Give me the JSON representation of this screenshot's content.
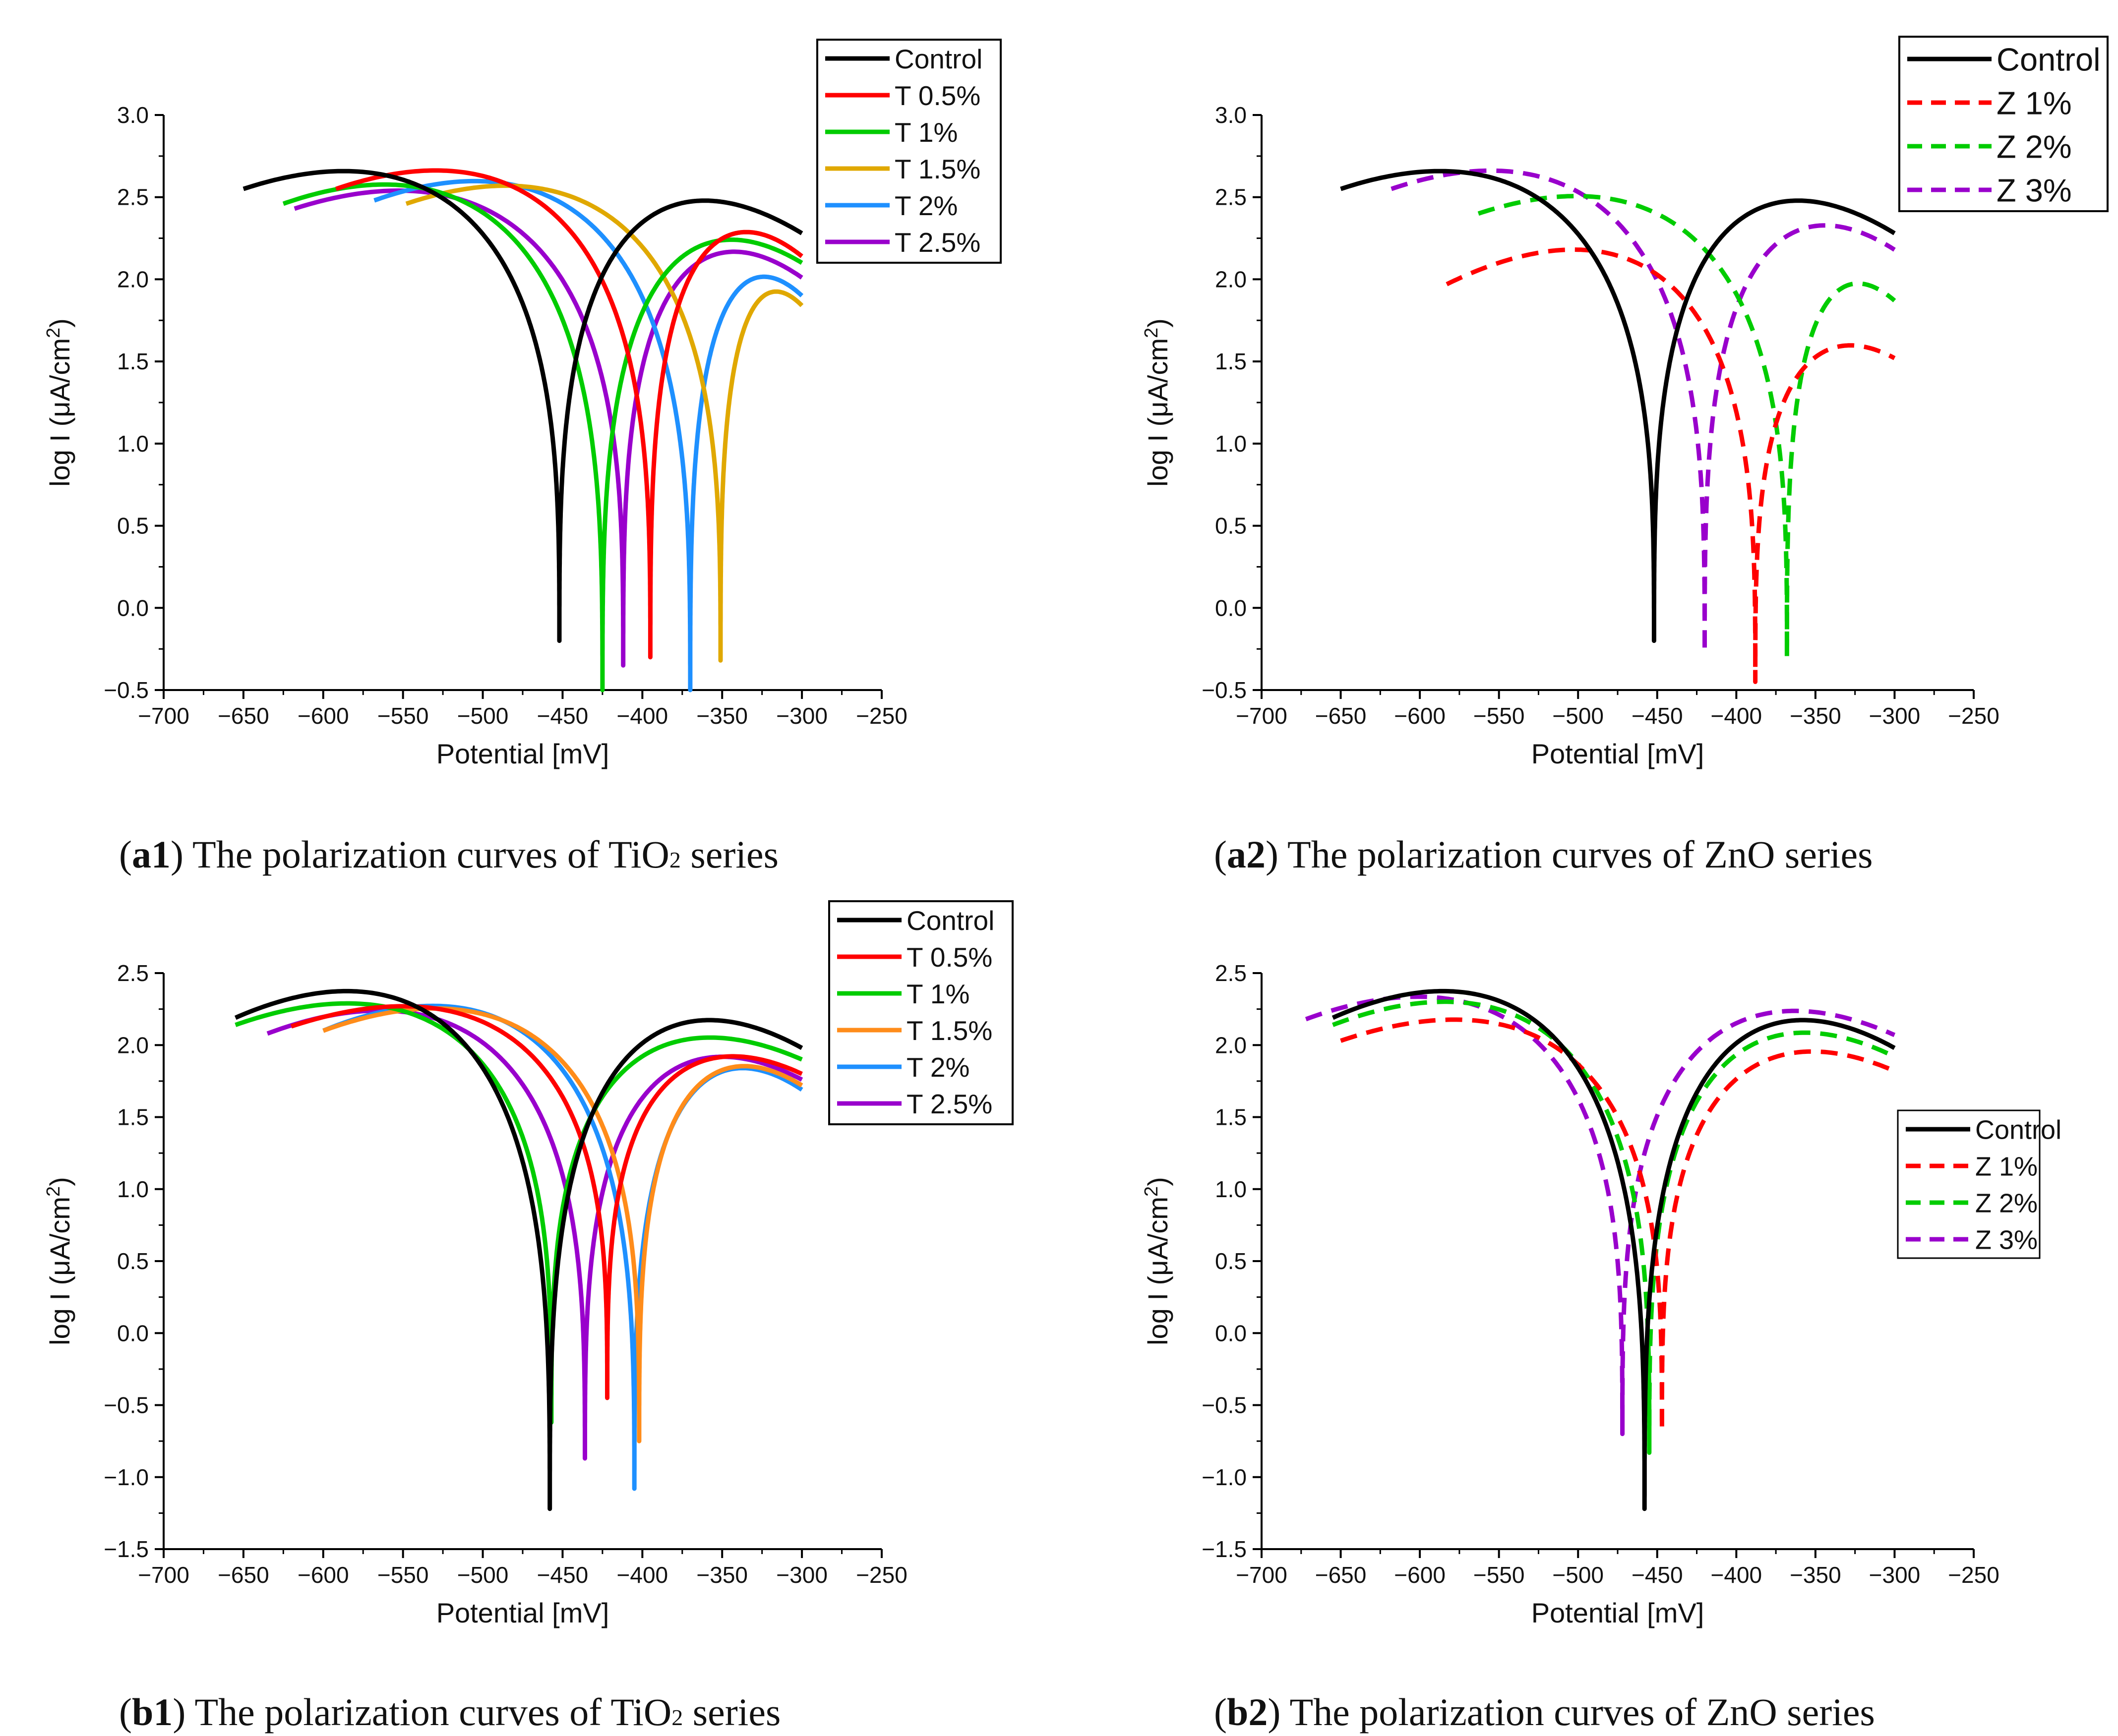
{
  "chart_data": [
    {
      "id": "a1",
      "type": "line",
      "caption": {
        "open": "(",
        "tag": "a1",
        "rest": ") The polarization curves of TiO",
        "sub": "2",
        "tail": " series"
      },
      "xlabel": "Potential [mV]",
      "ylabel": "log I (μA/cm2)",
      "xlim": [
        -700,
        -250
      ],
      "ylim": [
        -0.5,
        3.0
      ],
      "xticks": [
        -700,
        -650,
        -600,
        -550,
        -500,
        -450,
        -400,
        -350,
        -300,
        -250
      ],
      "yticks": [
        -0.5,
        0.0,
        0.5,
        1.0,
        1.5,
        2.0,
        2.5,
        3.0
      ],
      "series": [
        {
          "name": "Control",
          "color": "#000000",
          "dash": false,
          "ecorr": -452,
          "min": -0.2,
          "start": -650,
          "startVal": 2.55,
          "end": -300,
          "endVal": 2.28,
          "kA": 0.68,
          "kC": 0.55
        },
        {
          "name": "T 0.5%",
          "color": "#ff0000",
          "dash": false,
          "ecorr": -395,
          "min": -0.3,
          "start": -592,
          "startVal": 2.55,
          "end": -300,
          "endVal": 2.14,
          "kA": 0.62,
          "kC": 0.55
        },
        {
          "name": "T 1%",
          "color": "#00cc00",
          "dash": false,
          "ecorr": -425,
          "min": -0.5,
          "start": -625,
          "startVal": 2.46,
          "end": -300,
          "endVal": 2.1,
          "kA": 0.6,
          "kC": 0.55
        },
        {
          "name": "T 1.5%",
          "color": "#e0a800",
          "dash": false,
          "ecorr": -351,
          "min": -0.32,
          "start": -548,
          "startVal": 2.46,
          "end": -300,
          "endVal": 1.84,
          "kA": 0.55,
          "kC": 0.55
        },
        {
          "name": "T 2%",
          "color": "#1e90ff",
          "dash": false,
          "ecorr": -370,
          "min": -0.5,
          "start": -568,
          "startVal": 2.48,
          "end": -300,
          "endVal": 1.9,
          "kA": 0.58,
          "kC": 0.55
        },
        {
          "name": "T 2.5%",
          "color": "#9900cc",
          "dash": false,
          "ecorr": -412,
          "min": -0.35,
          "start": -618,
          "startVal": 2.43,
          "end": -300,
          "endVal": 2.01,
          "kA": 0.64,
          "kC": 0.55
        }
      ],
      "legend": {
        "position": "top-right",
        "rows": [
          "Control",
          "T 0.5%",
          "T 1%",
          "T 1.5%",
          "T 2%",
          "T 2.5%"
        ]
      }
    },
    {
      "id": "a2",
      "type": "line",
      "caption": {
        "open": "(",
        "tag": "a2",
        "rest": ") The polarization curves of ZnO series",
        "sub": "",
        "tail": ""
      },
      "xlabel": "Potential [mV]",
      "ylabel": "log I (μA/cm2)",
      "xlim": [
        -700,
        -250
      ],
      "ylim": [
        -0.5,
        3.0
      ],
      "xticks": [
        -700,
        -650,
        -600,
        -550,
        -500,
        -450,
        -400,
        -350,
        -300,
        -250
      ],
      "yticks": [
        -0.5,
        0.0,
        0.5,
        1.0,
        1.5,
        2.0,
        2.5,
        3.0
      ],
      "series": [
        {
          "name": "Control",
          "color": "#000000",
          "dash": false,
          "ecorr": -452,
          "min": -0.2,
          "start": -650,
          "startVal": 2.55,
          "end": -300,
          "endVal": 2.28,
          "kA": 0.68,
          "kC": 0.55
        },
        {
          "name": "Z 1%",
          "color": "#ff0000",
          "dash": true,
          "ecorr": -388,
          "min": -0.45,
          "start": -583,
          "startVal": 1.97,
          "end": -300,
          "endVal": 1.52,
          "kA": 0.55,
          "kC": 0.7
        },
        {
          "name": "Z 2%",
          "color": "#00cc00",
          "dash": true,
          "ecorr": -368,
          "min": -0.3,
          "start": -563,
          "startVal": 2.4,
          "end": -300,
          "endVal": 1.87,
          "kA": 0.58,
          "kC": 0.55
        },
        {
          "name": "Z 3%",
          "color": "#9900cc",
          "dash": true,
          "ecorr": -420,
          "min": -0.27,
          "start": -618,
          "startVal": 2.55,
          "end": -300,
          "endVal": 2.18,
          "kA": 0.62,
          "kC": 0.55
        }
      ],
      "legend": {
        "position": "top-right",
        "rows": [
          "Control",
          "Z 1%",
          "Z 2%",
          "Z 3%"
        ]
      }
    },
    {
      "id": "b1",
      "type": "line",
      "caption": {
        "open": "(",
        "tag": "b1",
        "rest": ") The polarization curves of TiO",
        "sub": "2",
        "tail": " series"
      },
      "xlabel": "Potential [mV]",
      "ylabel": "log I (μA/cm2)",
      "xlim": [
        -700,
        -250
      ],
      "ylim": [
        -1.5,
        2.5
      ],
      "xticks": [
        -700,
        -650,
        -600,
        -550,
        -500,
        -450,
        -400,
        -350,
        -300,
        -250
      ],
      "yticks": [
        -1.5,
        -1.0,
        -0.5,
        0.0,
        0.5,
        1.0,
        1.5,
        2.0,
        2.5
      ],
      "series": [
        {
          "name": "Control",
          "color": "#000000",
          "dash": false,
          "ecorr": -458,
          "min": -1.22,
          "start": -655,
          "startVal": 2.19,
          "end": -300,
          "endVal": 1.98,
          "kA": 0.62,
          "kC": 0.6
        },
        {
          "name": "T 0.5%",
          "color": "#ff0000",
          "dash": false,
          "ecorr": -422,
          "min": -0.45,
          "start": -620,
          "startVal": 2.13,
          "end": -300,
          "endVal": 1.8,
          "kA": 0.6,
          "kC": 0.6
        },
        {
          "name": "T 1%",
          "color": "#00cc00",
          "dash": false,
          "ecorr": -457,
          "min": -0.62,
          "start": -655,
          "startVal": 2.14,
          "end": -300,
          "endVal": 1.9,
          "kA": 0.62,
          "kC": 0.6
        },
        {
          "name": "T 1.5%",
          "color": "#ff8c1a",
          "dash": false,
          "ecorr": -402,
          "min": -0.75,
          "start": -600,
          "startVal": 2.1,
          "end": -300,
          "endVal": 1.72,
          "kA": 0.6,
          "kC": 0.6
        },
        {
          "name": "T 2%",
          "color": "#1e90ff",
          "dash": false,
          "ecorr": -405,
          "min": -1.08,
          "start": -600,
          "startVal": 2.1,
          "end": -300,
          "endVal": 1.69,
          "kA": 0.6,
          "kC": 0.6
        },
        {
          "name": "T 2.5%",
          "color": "#9900cc",
          "dash": false,
          "ecorr": -436,
          "min": -0.87,
          "start": -635,
          "startVal": 2.08,
          "end": -300,
          "endVal": 1.76,
          "kA": 0.62,
          "kC": 0.6
        }
      ],
      "legend": {
        "position": "top-right",
        "rows": [
          "Control",
          "T 0.5%",
          "T 1%",
          "T 1.5%",
          "T 2%",
          "T 2.5%"
        ]
      }
    },
    {
      "id": "b2",
      "type": "line",
      "caption": {
        "open": "(",
        "tag": "b2",
        "rest": ") The polarization curves of ZnO series",
        "sub": "",
        "tail": ""
      },
      "xlabel": "Potential [mV]",
      "ylabel": "log I (μA/cm2)",
      "xlim": [
        -700,
        -250
      ],
      "ylim": [
        -1.5,
        2.5
      ],
      "xticks": [
        -700,
        -650,
        -600,
        -550,
        -500,
        -450,
        -400,
        -350,
        -300,
        -250
      ],
      "yticks": [
        -1.5,
        -1.0,
        -0.5,
        0.0,
        0.5,
        1.0,
        1.5,
        2.0,
        2.5
      ],
      "series": [
        {
          "name": "Control",
          "color": "#000000",
          "dash": false,
          "ecorr": -458,
          "min": -1.22,
          "start": -655,
          "startVal": 2.19,
          "end": -300,
          "endVal": 1.98,
          "kA": 0.62,
          "kC": 0.6
        },
        {
          "name": "Z 1%",
          "color": "#ff0000",
          "dash": true,
          "ecorr": -447,
          "min": -0.68,
          "start": -650,
          "startVal": 2.03,
          "end": -300,
          "endVal": 1.82,
          "kA": 0.6,
          "kC": 0.6
        },
        {
          "name": "Z 2%",
          "color": "#00cc00",
          "dash": true,
          "ecorr": -455,
          "min": -0.83,
          "start": -655,
          "startVal": 2.14,
          "end": -300,
          "endVal": 1.92,
          "kA": 0.62,
          "kC": 0.6
        },
        {
          "name": "Z 3%",
          "color": "#9900cc",
          "dash": true,
          "ecorr": -472,
          "min": -0.7,
          "start": -672,
          "startVal": 2.18,
          "end": -300,
          "endVal": 2.07,
          "kA": 0.62,
          "kC": 0.6
        }
      ],
      "legend": {
        "position": "center-right",
        "rows": [
          "Control",
          "Z 1%",
          "Z 2%",
          "Z 3%"
        ]
      }
    }
  ]
}
